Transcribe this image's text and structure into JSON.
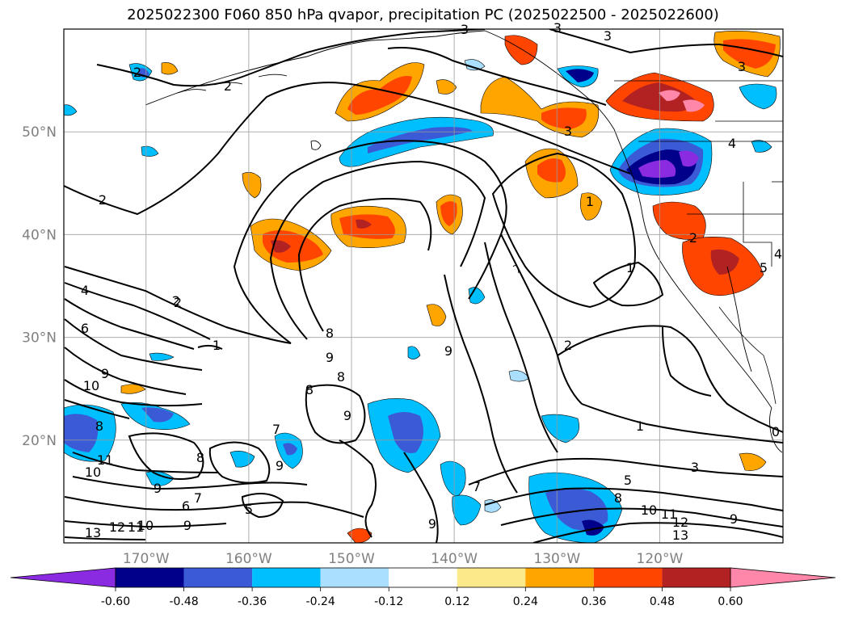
{
  "title": "2025022300 F060 850 hPa qvapor, precipitation PC (2025022500 - 2025022600)",
  "map": {
    "lat_ticks": [
      "50°N",
      "40°N",
      "30°N",
      "20°N"
    ],
    "lat_values": [
      50,
      40,
      30,
      20
    ],
    "lon_ticks": [
      "170°W",
      "160°W",
      "150°W",
      "140°W",
      "130°W",
      "120°W"
    ],
    "lon_values": [
      -170,
      -160,
      -150,
      -140,
      -130,
      -120
    ],
    "extent": {
      "lon_min": -178,
      "lon_max": -108,
      "lat_min": 10,
      "lat_max": 60
    },
    "grid": true,
    "coastline_color": "#000000"
  },
  "colorbar": {
    "orientation": "horizontal",
    "extend": "both",
    "levels": [
      "-0.60",
      "-0.48",
      "-0.36",
      "-0.24",
      "-0.12",
      "0.12",
      "0.24",
      "0.36",
      "0.48",
      "0.60"
    ],
    "colors": [
      "#8a2be2",
      "#00008b",
      "#3b5bd6",
      "#00bfff",
      "#aadfff",
      "#ffffff",
      "#fce98a",
      "#ffa500",
      "#ff4500",
      "#b22222",
      "#ff88aa"
    ]
  },
  "contours": {
    "labels": [
      "2",
      "3",
      "3",
      "3",
      "3",
      "2",
      "3",
      "4",
      "2",
      "2",
      "4",
      "6",
      "9",
      "10",
      "8",
      "11",
      "10",
      "9",
      "6",
      "7",
      "5",
      "13",
      "12",
      "11",
      "10",
      "9",
      "2",
      "1",
      "8",
      "9",
      "8",
      "8",
      "9",
      "7",
      "8",
      "9",
      "9",
      "9",
      "7",
      "1",
      "2",
      "1",
      "3",
      "5",
      "8",
      "10",
      "11",
      "12",
      "13",
      "9",
      "0",
      "5",
      "4",
      "1",
      "2"
    ]
  }
}
